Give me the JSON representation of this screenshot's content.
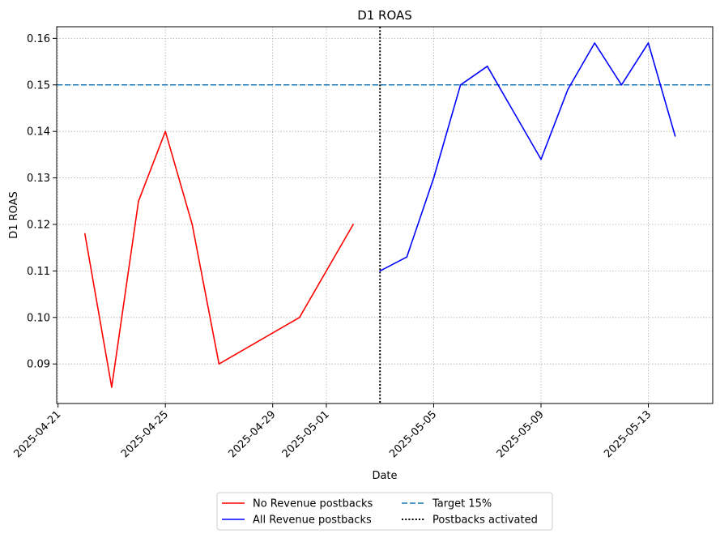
{
  "chart_data": {
    "type": "line",
    "title": "D1 ROAS",
    "xlabel": "Date",
    "ylabel": "D1 ROAS",
    "xlim": [
      "2025-04-21",
      "2025-05-15"
    ],
    "ylim": [
      0.0815,
      0.1625
    ],
    "x_ticks": [
      "2025-04-21",
      "2025-04-25",
      "2025-04-29",
      "2025-05-01",
      "2025-05-05",
      "2025-05-09",
      "2025-05-13"
    ],
    "y_ticks": [
      "0.09",
      "0.10",
      "0.11",
      "0.12",
      "0.13",
      "0.14",
      "0.15",
      "0.16"
    ],
    "grid": true,
    "series": [
      {
        "name": "No Revenue postbacks",
        "color": "#ff0000",
        "style": "solid",
        "x": [
          "2025-04-22",
          "2025-04-23",
          "2025-04-24",
          "2025-04-25",
          "2025-04-26",
          "2025-04-27",
          "2025-04-30",
          "2025-05-02"
        ],
        "y": [
          0.118,
          0.085,
          0.125,
          0.14,
          0.12,
          0.09,
          0.1,
          0.12
        ]
      },
      {
        "name": "All Revenue postbacks",
        "color": "#0000ff",
        "style": "solid",
        "x": [
          "2025-05-03",
          "2025-05-04",
          "2025-05-05",
          "2025-05-06",
          "2025-05-07",
          "2025-05-09",
          "2025-05-10",
          "2025-05-11",
          "2025-05-12",
          "2025-05-13",
          "2025-05-14"
        ],
        "y": [
          0.11,
          0.113,
          0.13,
          0.15,
          0.154,
          0.134,
          0.149,
          0.159,
          0.15,
          0.159,
          0.139
        ]
      }
    ],
    "reference_lines": [
      {
        "name": "Target 15%",
        "orientation": "horizontal",
        "value": 0.15,
        "color": "#1f77b4",
        "style": "dashed"
      },
      {
        "name": "Postbacks activated",
        "orientation": "vertical",
        "value": "2025-05-03",
        "color": "#000000",
        "style": "dotted"
      }
    ],
    "legend": {
      "placement": "bottom-center",
      "columns": 2,
      "entries": [
        "No Revenue postbacks",
        "All Revenue postbacks",
        "Target 15%",
        "Postbacks activated"
      ]
    }
  }
}
